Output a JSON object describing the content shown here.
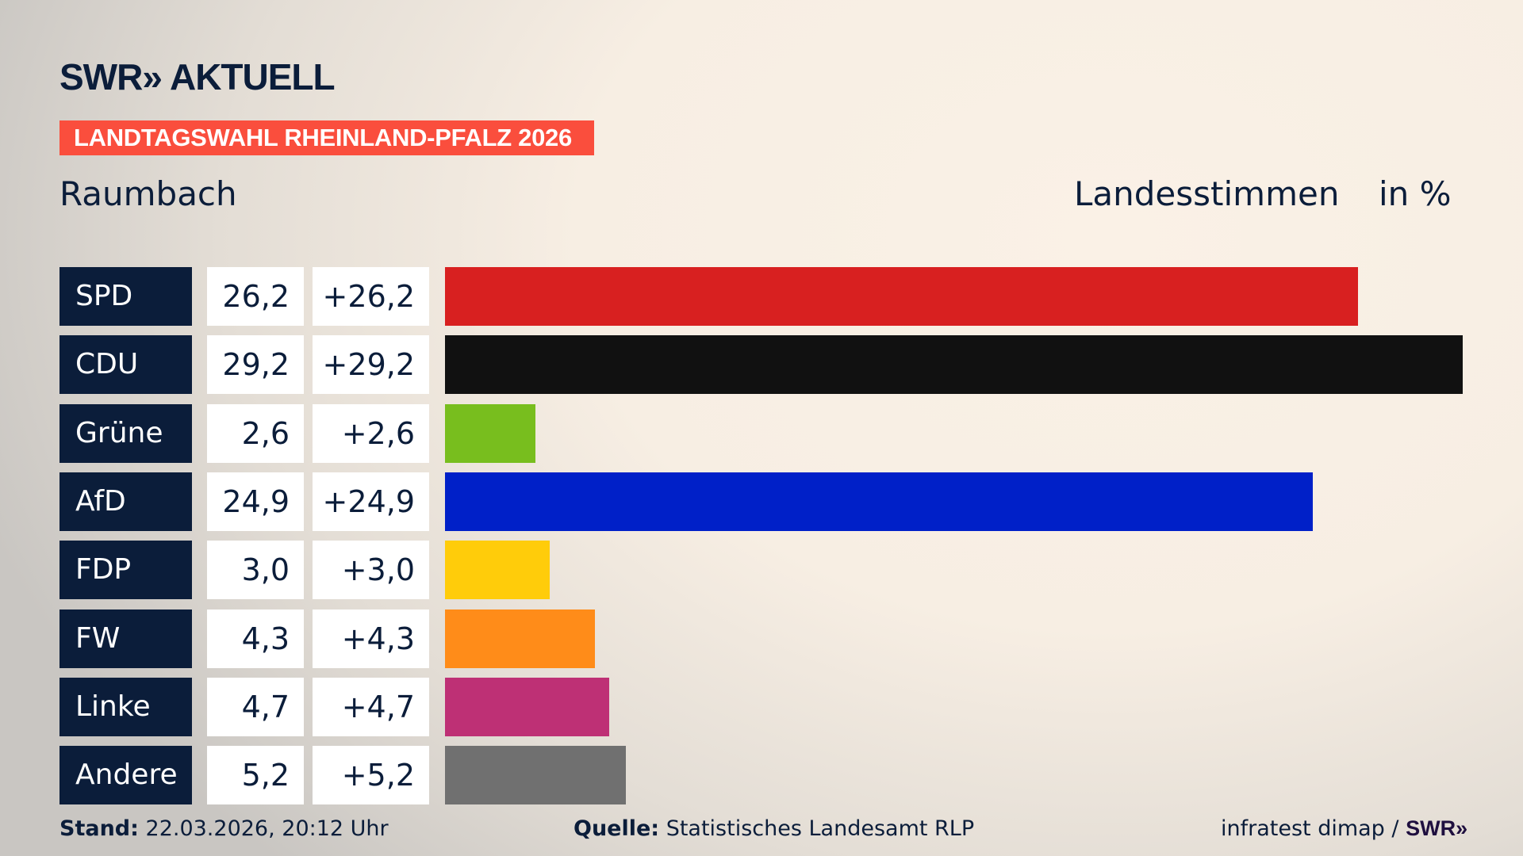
{
  "header": {
    "logo": "SWR» AKTUELL",
    "tag": "LANDTAGSWAHL RHEINLAND-PFALZ 2026",
    "place": "Raumbach",
    "metric": "Landesstimmen",
    "unit": "in %"
  },
  "chart_data": {
    "type": "bar",
    "orientation": "horizontal",
    "categories": [
      "SPD",
      "CDU",
      "Grüne",
      "AfD",
      "FDP",
      "FW",
      "Linke",
      "Andere"
    ],
    "values": [
      26.2,
      29.2,
      2.6,
      24.9,
      3.0,
      4.3,
      4.7,
      5.2
    ],
    "value_labels": [
      "26,2",
      "29,2",
      "2,6",
      "24,9",
      "3,0",
      "4,3",
      "4,7",
      "5,2"
    ],
    "change_labels": [
      "+26,2",
      "+29,2",
      "+2,6",
      "+24,9",
      "+3,0",
      "+4,3",
      "+4,7",
      "+5,2"
    ],
    "colors": [
      "#d82020",
      "#111111",
      "#78be1e",
      "#0020c8",
      "#ffcc0a",
      "#ff8c19",
      "#be3075",
      "#707070"
    ],
    "xlim": [
      0,
      29.2
    ]
  },
  "footer": {
    "stand_label": "Stand:",
    "stand": "22.03.2026, 20:12 Uhr",
    "source_label": "Quelle:",
    "source": "Statistisches Landesamt RLP",
    "credit": "infratest dimap /",
    "credit_logo": "SWR»"
  }
}
